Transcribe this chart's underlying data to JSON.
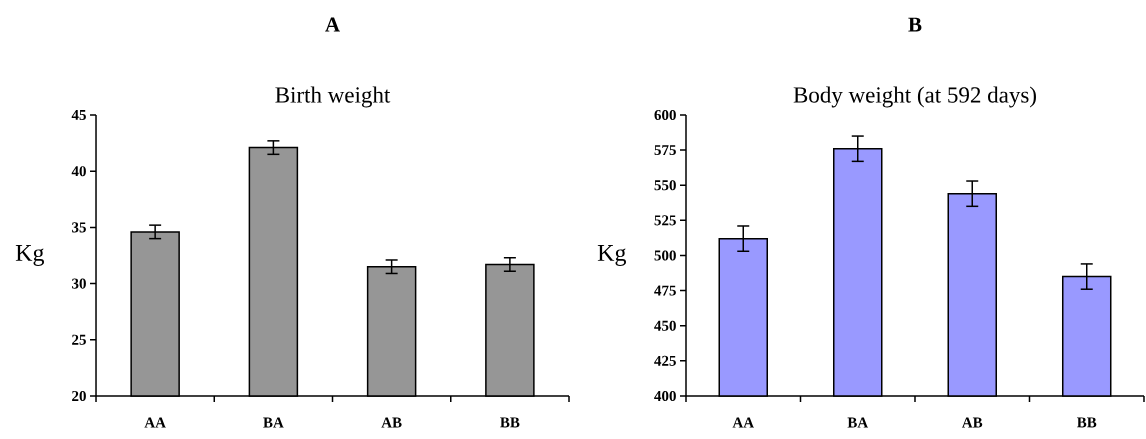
{
  "chart_data": [
    {
      "type": "bar",
      "title": "A",
      "subtitle": "Birth weight",
      "ylabel": "Kg",
      "categories": [
        "AA",
        "BA",
        "AB",
        "BB"
      ],
      "values": [
        34.6,
        42.1,
        31.5,
        31.7
      ],
      "errors": [
        0.6,
        0.6,
        0.6,
        0.6
      ],
      "color": "#969696",
      "ylim": [
        20,
        45
      ],
      "yticks": [
        20,
        25,
        30,
        35,
        40,
        45
      ]
    },
    {
      "type": "bar",
      "title": "B",
      "subtitle": "Body weight (at 592 days)",
      "ylabel": "Kg",
      "categories": [
        "AA",
        "BA",
        "AB",
        "BB"
      ],
      "values": [
        512,
        576,
        544,
        485
      ],
      "errors": [
        9,
        9,
        9,
        9
      ],
      "color": "#9999ff",
      "ylim": [
        400,
        600
      ],
      "yticks": [
        400,
        425,
        450,
        475,
        500,
        525,
        550,
        575,
        600
      ]
    }
  ]
}
